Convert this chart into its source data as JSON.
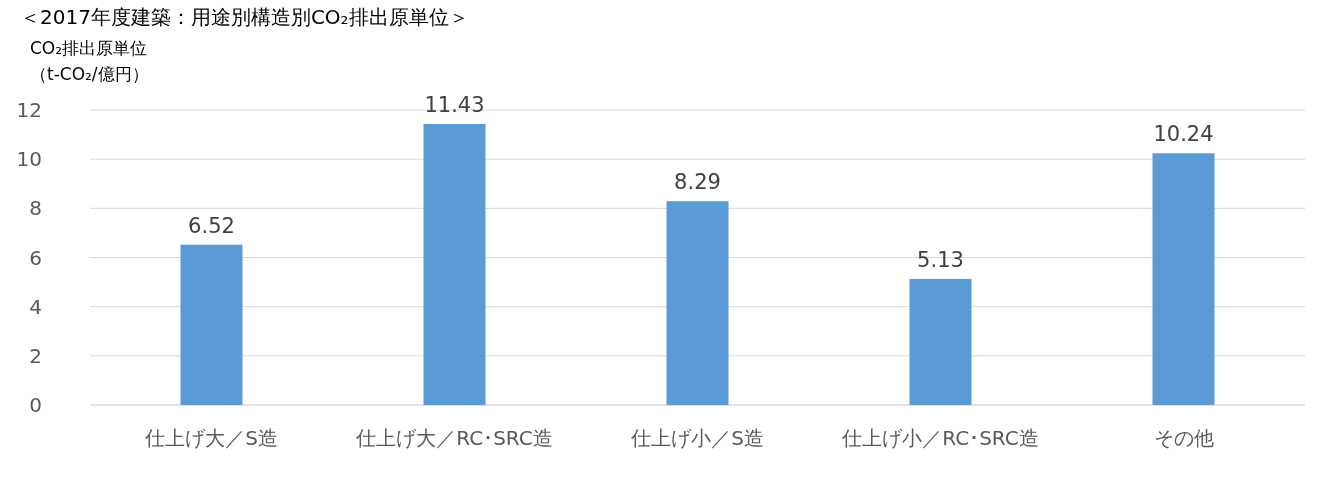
{
  "chart_data": {
    "type": "bar",
    "title": "＜2017年度建築：用途別構造別CO₂排出原単位＞",
    "ylabel": "CO₂排出原単位（t-CO₂/億円）",
    "categories": [
      "仕上げ大／S造",
      "仕上げ大／RC･SRC造",
      "仕上げ小／S造",
      "仕上げ小／RC･SRC造",
      "その他"
    ],
    "values": [
      6.52,
      11.43,
      8.29,
      5.13,
      10.24
    ],
    "color": "#5b9bd5",
    "ylim": [
      0,
      12
    ],
    "yticks": [
      0,
      2,
      4,
      6,
      8,
      10,
      12
    ],
    "grid": "y",
    "data_labels": true
  }
}
